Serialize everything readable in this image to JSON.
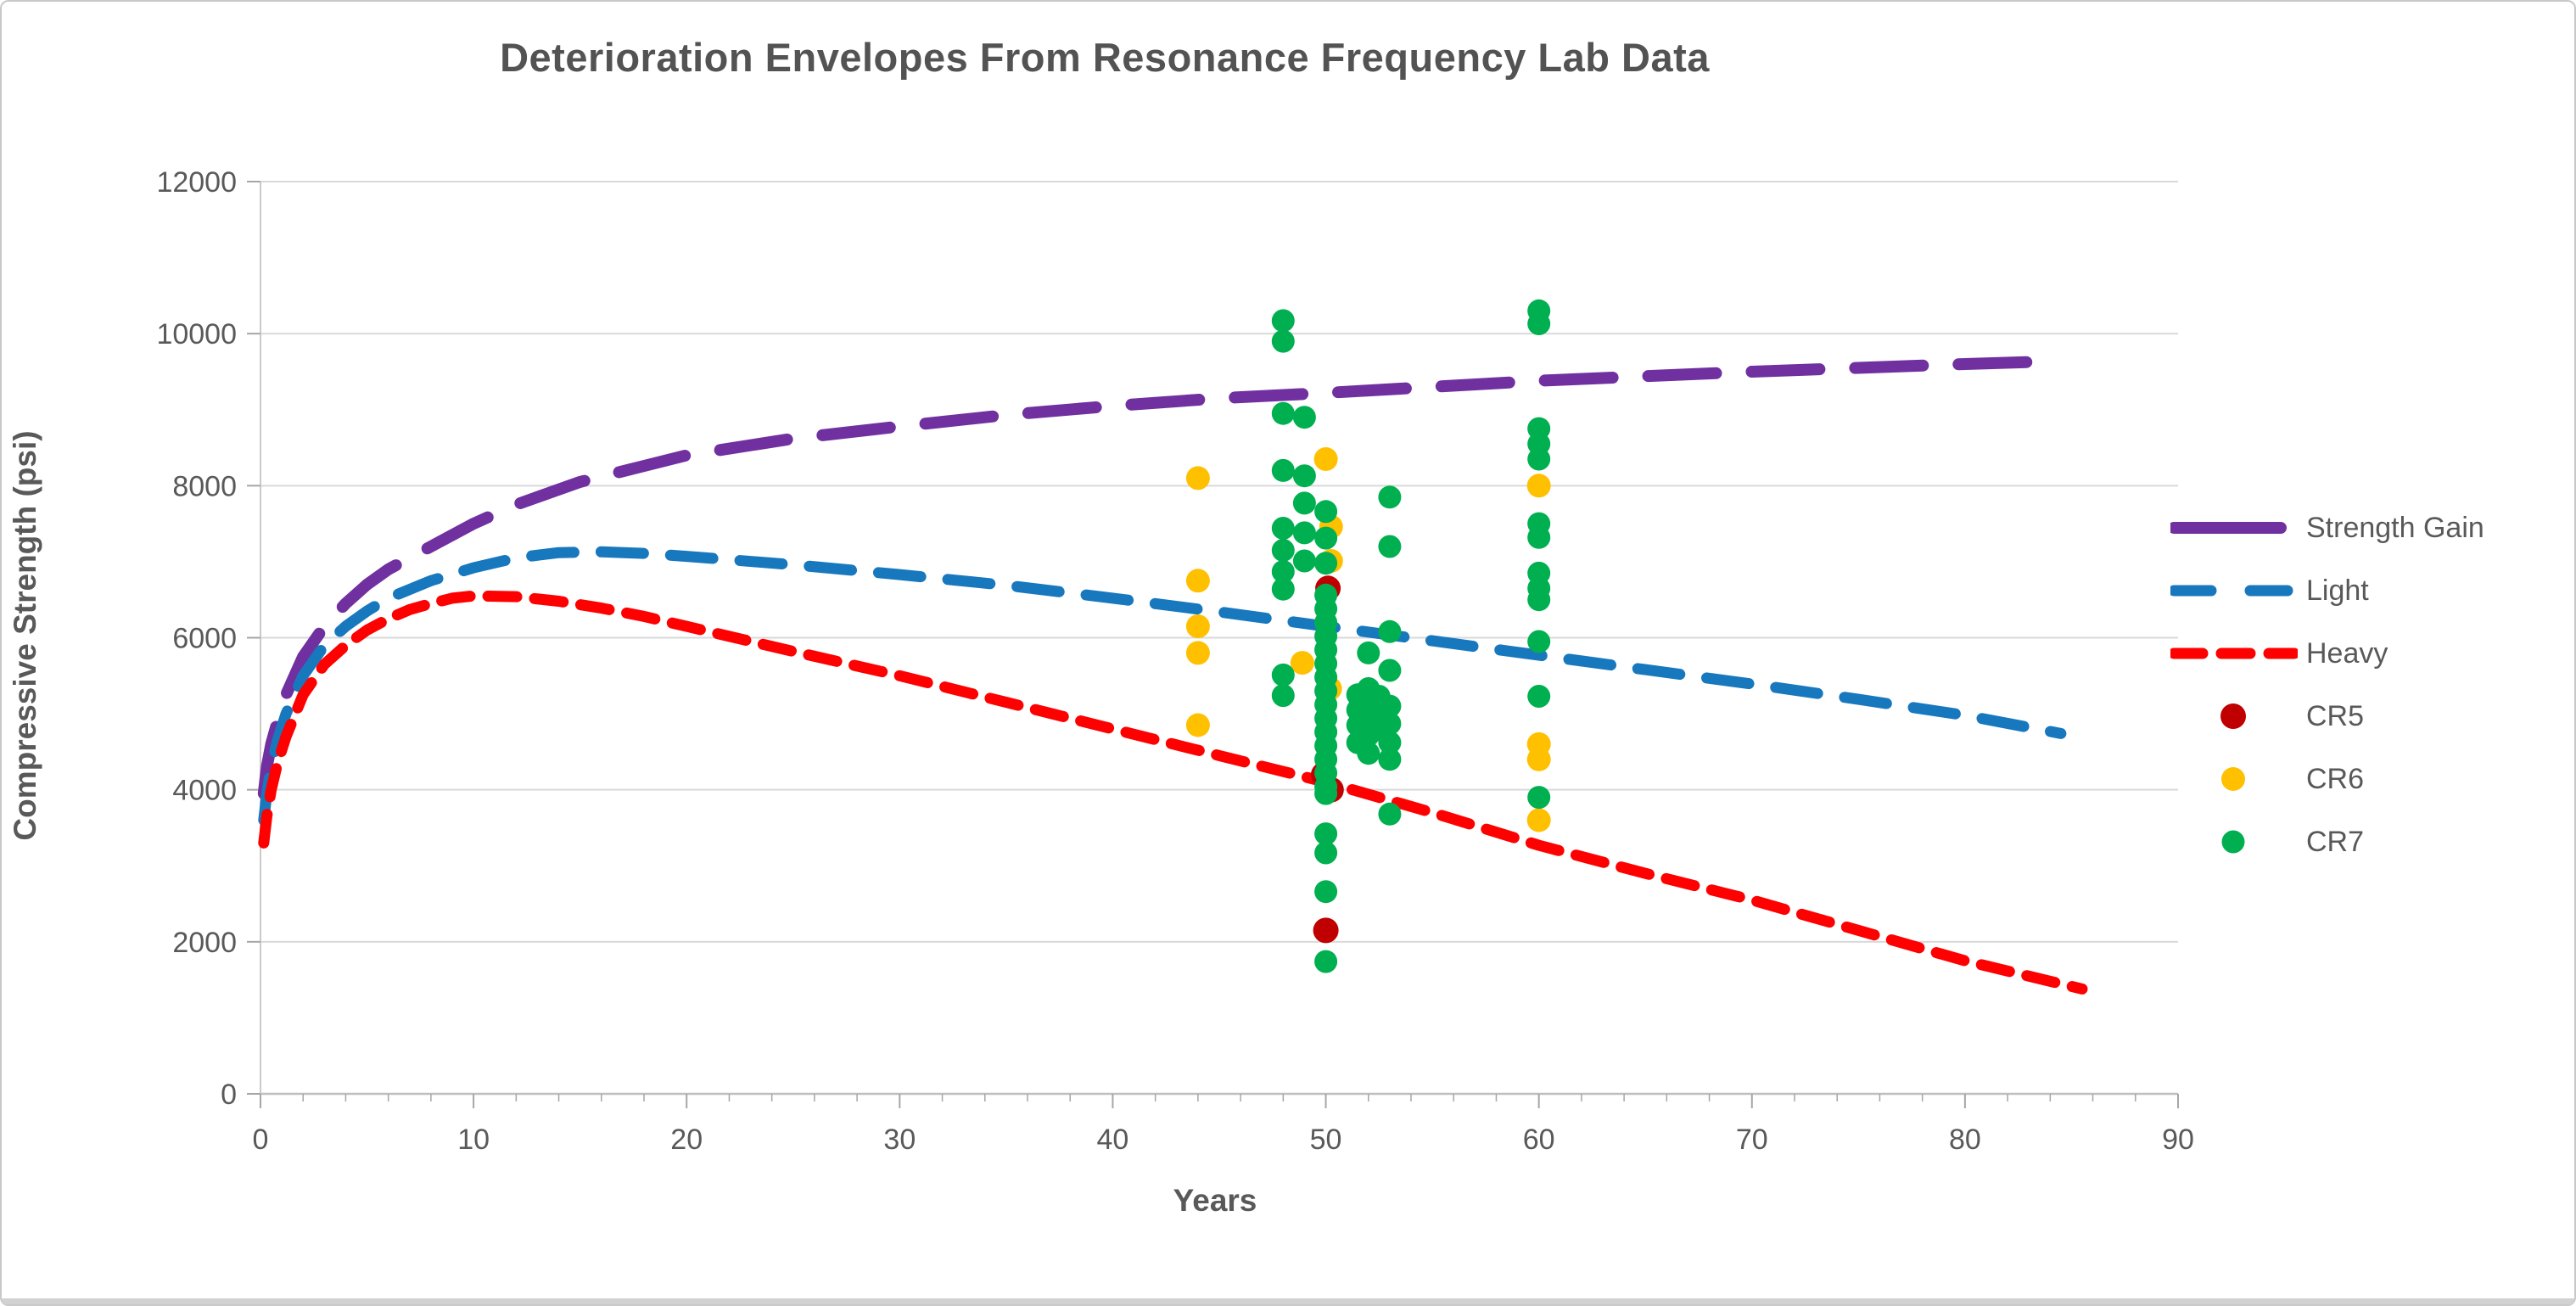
{
  "chart_data": {
    "type": "scatter",
    "title": "Deterioration Envelopes From Resonance Frequency Lab Data",
    "x_axis": {
      "title": "Years",
      "min": 0,
      "max": 90,
      "major_tick": 10,
      "minor_tick": 2,
      "tick_labels": [
        0,
        10,
        20,
        30,
        40,
        50,
        60,
        70,
        80,
        90
      ]
    },
    "y_axis": {
      "title": "Compressive Strength (psi)",
      "min": 0,
      "max": 12000,
      "major_tick": 2000,
      "tick_labels": [
        0,
        2000,
        4000,
        6000,
        8000,
        10000,
        12000
      ]
    },
    "grid": "horizontal-only",
    "legend_position": "right",
    "colors": {
      "text": "#595959",
      "title": "#535353",
      "gridline": "#d9d9d9",
      "axis": "#bfbfbf",
      "tick": "#a6a6a6"
    },
    "series": [
      {
        "name": "Strength Gain",
        "kind": "line",
        "color": "#7030A0",
        "stroke_width": 14,
        "dash": [
          80,
          42
        ],
        "points": [
          [
            0.15,
            3950
          ],
          [
            0.3,
            4300
          ],
          [
            0.5,
            4600
          ],
          [
            0.8,
            4900
          ],
          [
            1.2,
            5250
          ],
          [
            2,
            5750
          ],
          [
            3,
            6150
          ],
          [
            4,
            6450
          ],
          [
            5,
            6700
          ],
          [
            6,
            6900
          ],
          [
            8,
            7200
          ],
          [
            10,
            7500
          ],
          [
            12,
            7750
          ],
          [
            15,
            8050
          ],
          [
            20,
            8400
          ],
          [
            25,
            8620
          ],
          [
            30,
            8780
          ],
          [
            35,
            8930
          ],
          [
            40,
            9050
          ],
          [
            45,
            9150
          ],
          [
            50,
            9220
          ],
          [
            55,
            9300
          ],
          [
            60,
            9380
          ],
          [
            65,
            9440
          ],
          [
            70,
            9500
          ],
          [
            75,
            9550
          ],
          [
            80,
            9600
          ],
          [
            84.5,
            9640
          ]
        ]
      },
      {
        "name": "Light",
        "kind": "line",
        "color": "#1878BE",
        "stroke_width": 13,
        "dash": [
          50,
          32
        ],
        "points": [
          [
            0.15,
            3600
          ],
          [
            0.3,
            3950
          ],
          [
            0.5,
            4300
          ],
          [
            0.8,
            4650
          ],
          [
            1.2,
            5000
          ],
          [
            2,
            5500
          ],
          [
            3,
            5900
          ],
          [
            4,
            6150
          ],
          [
            5,
            6350
          ],
          [
            6,
            6520
          ],
          [
            8,
            6750
          ],
          [
            10,
            6920
          ],
          [
            12,
            7050
          ],
          [
            14,
            7120
          ],
          [
            16,
            7130
          ],
          [
            18,
            7110
          ],
          [
            20,
            7070
          ],
          [
            25,
            6960
          ],
          [
            30,
            6830
          ],
          [
            35,
            6690
          ],
          [
            40,
            6520
          ],
          [
            45,
            6340
          ],
          [
            50,
            6150
          ],
          [
            55,
            5960
          ],
          [
            60,
            5770
          ],
          [
            65,
            5580
          ],
          [
            70,
            5390
          ],
          [
            75,
            5190
          ],
          [
            80,
            4980
          ],
          [
            84.5,
            4740
          ]
        ]
      },
      {
        "name": "Heavy",
        "kind": "line",
        "color": "#FF0000",
        "stroke_width": 13,
        "dash": [
          34,
          21
        ],
        "points": [
          [
            0.15,
            3300
          ],
          [
            0.3,
            3650
          ],
          [
            0.5,
            4000
          ],
          [
            0.8,
            4350
          ],
          [
            1.2,
            4700
          ],
          [
            2,
            5250
          ],
          [
            3,
            5650
          ],
          [
            4,
            5900
          ],
          [
            5,
            6100
          ],
          [
            6,
            6250
          ],
          [
            7,
            6370
          ],
          [
            8,
            6450
          ],
          [
            9,
            6520
          ],
          [
            10,
            6550
          ],
          [
            12,
            6540
          ],
          [
            14,
            6480
          ],
          [
            16,
            6390
          ],
          [
            18,
            6280
          ],
          [
            20,
            6150
          ],
          [
            25,
            5820
          ],
          [
            30,
            5500
          ],
          [
            35,
            5150
          ],
          [
            40,
            4800
          ],
          [
            45,
            4450
          ],
          [
            50,
            4100
          ],
          [
            55,
            3700
          ],
          [
            60,
            3270
          ],
          [
            65,
            2900
          ],
          [
            70,
            2550
          ],
          [
            75,
            2150
          ],
          [
            80,
            1750
          ],
          [
            85.5,
            1380
          ]
        ]
      },
      {
        "name": "CR5",
        "kind": "scatter",
        "color": "#C00000",
        "radius": 15,
        "points": [
          [
            50.1,
            6650
          ],
          [
            49.9,
            4200
          ],
          [
            50.25,
            4000
          ],
          [
            50,
            2150
          ]
        ]
      },
      {
        "name": "CR6",
        "kind": "scatter",
        "color": "#FFC000",
        "radius": 14,
        "points": [
          [
            44,
            8100
          ],
          [
            44,
            6750
          ],
          [
            44,
            6150
          ],
          [
            44,
            5800
          ],
          [
            44,
            4850
          ],
          [
            50,
            8350
          ],
          [
            50.25,
            7460
          ],
          [
            50.25,
            7010
          ],
          [
            48.9,
            5670
          ],
          [
            50.2,
            5330
          ],
          [
            60,
            8000
          ],
          [
            60,
            4600
          ],
          [
            60,
            4400
          ],
          [
            60,
            3600
          ]
        ]
      },
      {
        "name": "CR7",
        "kind": "scatter",
        "color": "#00B050",
        "radius": 13.5,
        "points": [
          [
            48,
            10170
          ],
          [
            48,
            9900
          ],
          [
            48,
            8950
          ],
          [
            48,
            8200
          ],
          [
            48,
            7440
          ],
          [
            48,
            7150
          ],
          [
            48,
            6870
          ],
          [
            48,
            6640
          ],
          [
            48,
            5510
          ],
          [
            48,
            5240
          ],
          [
            49,
            8900
          ],
          [
            49,
            8130
          ],
          [
            49,
            7770
          ],
          [
            49,
            7380
          ],
          [
            49,
            7010
          ],
          [
            50,
            7660
          ],
          [
            50,
            7310
          ],
          [
            50,
            6980
          ],
          [
            50,
            6560
          ],
          [
            50,
            6380
          ],
          [
            50,
            6200
          ],
          [
            50,
            6020
          ],
          [
            50,
            5840
          ],
          [
            50,
            5660
          ],
          [
            50,
            5480
          ],
          [
            50,
            5300
          ],
          [
            50,
            5120
          ],
          [
            50,
            4940
          ],
          [
            50,
            4760
          ],
          [
            50,
            4580
          ],
          [
            50,
            4400
          ],
          [
            50,
            4220
          ],
          [
            50,
            4040
          ],
          [
            50,
            3950
          ],
          [
            50,
            3420
          ],
          [
            50,
            3170
          ],
          [
            50,
            2660
          ],
          [
            50,
            1740
          ],
          [
            51.5,
            5250
          ],
          [
            51.5,
            5050
          ],
          [
            51.5,
            4850
          ],
          [
            51.5,
            4620
          ],
          [
            52,
            5330
          ],
          [
            52,
            5150
          ],
          [
            52,
            4950
          ],
          [
            52,
            4720
          ],
          [
            52,
            4480
          ],
          [
            52.5,
            5230
          ],
          [
            52.5,
            5020
          ],
          [
            52.5,
            4800
          ],
          [
            53,
            5100
          ],
          [
            53,
            4870
          ],
          [
            53,
            4620
          ],
          [
            53,
            4400
          ],
          [
            53,
            7850
          ],
          [
            53,
            7200
          ],
          [
            53,
            6080
          ],
          [
            52,
            5800
          ],
          [
            53,
            5570
          ],
          [
            53,
            3680
          ],
          [
            60,
            10300
          ],
          [
            60,
            10130
          ],
          [
            60,
            8750
          ],
          [
            60,
            8550
          ],
          [
            60,
            8350
          ],
          [
            60,
            7500
          ],
          [
            60,
            7320
          ],
          [
            60,
            6850
          ],
          [
            60,
            6650
          ],
          [
            60,
            6500
          ],
          [
            60,
            5950
          ],
          [
            60,
            5230
          ],
          [
            60,
            3900
          ]
        ]
      }
    ],
    "legend_items": [
      "Strength Gain",
      "Light",
      "Heavy",
      "CR5",
      "CR6",
      "CR7"
    ]
  }
}
